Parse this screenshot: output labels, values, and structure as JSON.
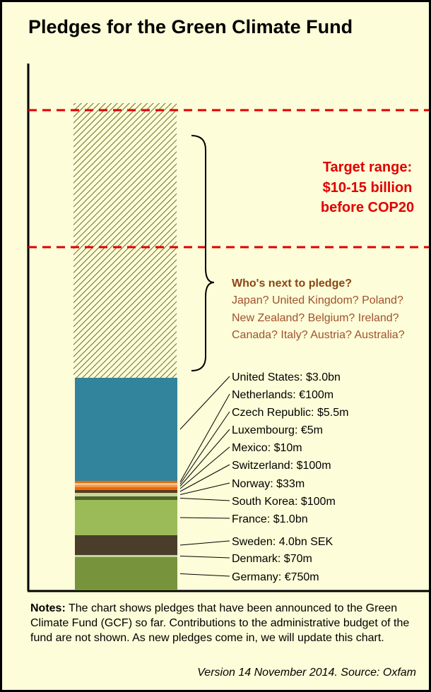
{
  "chart_data": {
    "type": "bar",
    "title": "Pledges for the Green Climate Fund",
    "series": [
      {
        "name": "Germany: €750m",
        "value": 0.95,
        "color": "#77933c"
      },
      {
        "name": "Denmark: $70m",
        "value": 0.07,
        "color": "#c3d69b"
      },
      {
        "name": "Sweden: 4.0bn SEK",
        "value": 0.54,
        "color": "#4a3e2a"
      },
      {
        "name": "France: $1.0bn",
        "value": 1.0,
        "color": "#9bbb59"
      },
      {
        "name": "South Korea: $100m",
        "value": 0.1,
        "color": "#4f6228"
      },
      {
        "name": "Norway: $33m",
        "value": 0.033,
        "color": "#c3d69b"
      },
      {
        "name": "Switzerland: $100m",
        "value": 0.1,
        "color": "#5c3a1e"
      },
      {
        "name": "Mexico: $10m",
        "value": 0.01,
        "color": "#e46c0a"
      },
      {
        "name": "Luxembourg: €5m",
        "value": 0.006,
        "color": "#f79646"
      },
      {
        "name": "Czech Republic: $5.5m",
        "value": 0.0055,
        "color": "#fac090"
      },
      {
        "name": "Netherlands: €100m",
        "value": 0.125,
        "color": "#e46c0a"
      },
      {
        "name": "United States: $3.0bn",
        "value": 3.0,
        "color": "#31849b"
      }
    ],
    "unit": "billion USD (approximate)",
    "target_range": [
      10,
      15
    ],
    "ylim": [
      0,
      17
    ],
    "colors": {
      "hatch": "#6b6b2a",
      "target_line": "#e00000",
      "background": "#fdfdd9"
    }
  },
  "target_text": [
    "Target range:",
    "$10-15 billion",
    "before COP20"
  ],
  "next": {
    "title": "Who's next to pledge?",
    "lines": [
      "Japan? United Kingdom? Poland?",
      "New Zealand? Belgium? Ireland?",
      "Canada? Italy? Austria? Australia?"
    ]
  },
  "notes": {
    "label": "Notes:",
    "text": " The chart shows pledges that have been announced to the Green Climate Fund (GCF) so far. Contributions to the administrative budget of the fund are not shown. As new pledges come in, we will update this chart."
  },
  "version": "Version 14 November 2014. Source: Oxfam"
}
